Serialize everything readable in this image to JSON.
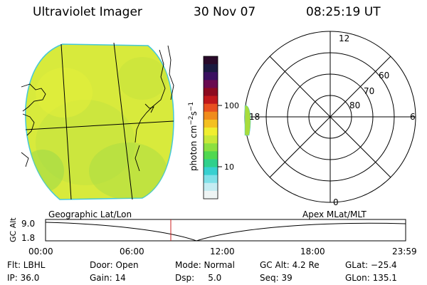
{
  "header": {
    "instrument": "Ultraviolet Imager",
    "date": "30 Nov 07",
    "time": "08:25:19 UT"
  },
  "colorbar": {
    "unit_label": "photon cm",
    "unit_sup1": "−2",
    "unit_s": "s",
    "unit_sup2": "−1",
    "tick_labels": [
      "100",
      "10"
    ],
    "colors": [
      "#2a0a2a",
      "#1a1a40",
      "#3a1060",
      "#6a0a50",
      "#8c0a20",
      "#c0181c",
      "#e85020",
      "#f08c1c",
      "#f4c020",
      "#f0ee30",
      "#c8e838",
      "#8ce040",
      "#50d850",
      "#30d08c",
      "#38d0d0",
      "#80e0e8",
      "#c4ecf2",
      "#eef4f4"
    ]
  },
  "left_panel": {
    "label": "Geographic Lat/Lon",
    "fill_color": "#d8ea3c"
  },
  "polar_panel": {
    "label": "Apex MLat/MLT",
    "mlt_labels": [
      "12",
      "18",
      "6",
      "0"
    ],
    "lat_labels": [
      "60",
      "70",
      "80"
    ],
    "blob_color": "#a8dc3c"
  },
  "altitude_plot": {
    "ylabel": "GC Alt",
    "y_ticks": [
      "9.0",
      "1.8"
    ],
    "x_ticks": [
      "00:00",
      "06:00",
      "12:00",
      "18:00",
      "23:59"
    ],
    "marker_color": "#cc2020"
  },
  "footer": {
    "row1": [
      "Flt: LBHL",
      "Door: Open",
      "Mode: Normal",
      "GC Alt: 4.2 Re",
      "GLat: −25.4"
    ],
    "row2": [
      "IP: 36.0",
      "Gain: 14",
      "Dsp:     5.0",
      "Seq: 39",
      "GLon: 135.1"
    ]
  }
}
